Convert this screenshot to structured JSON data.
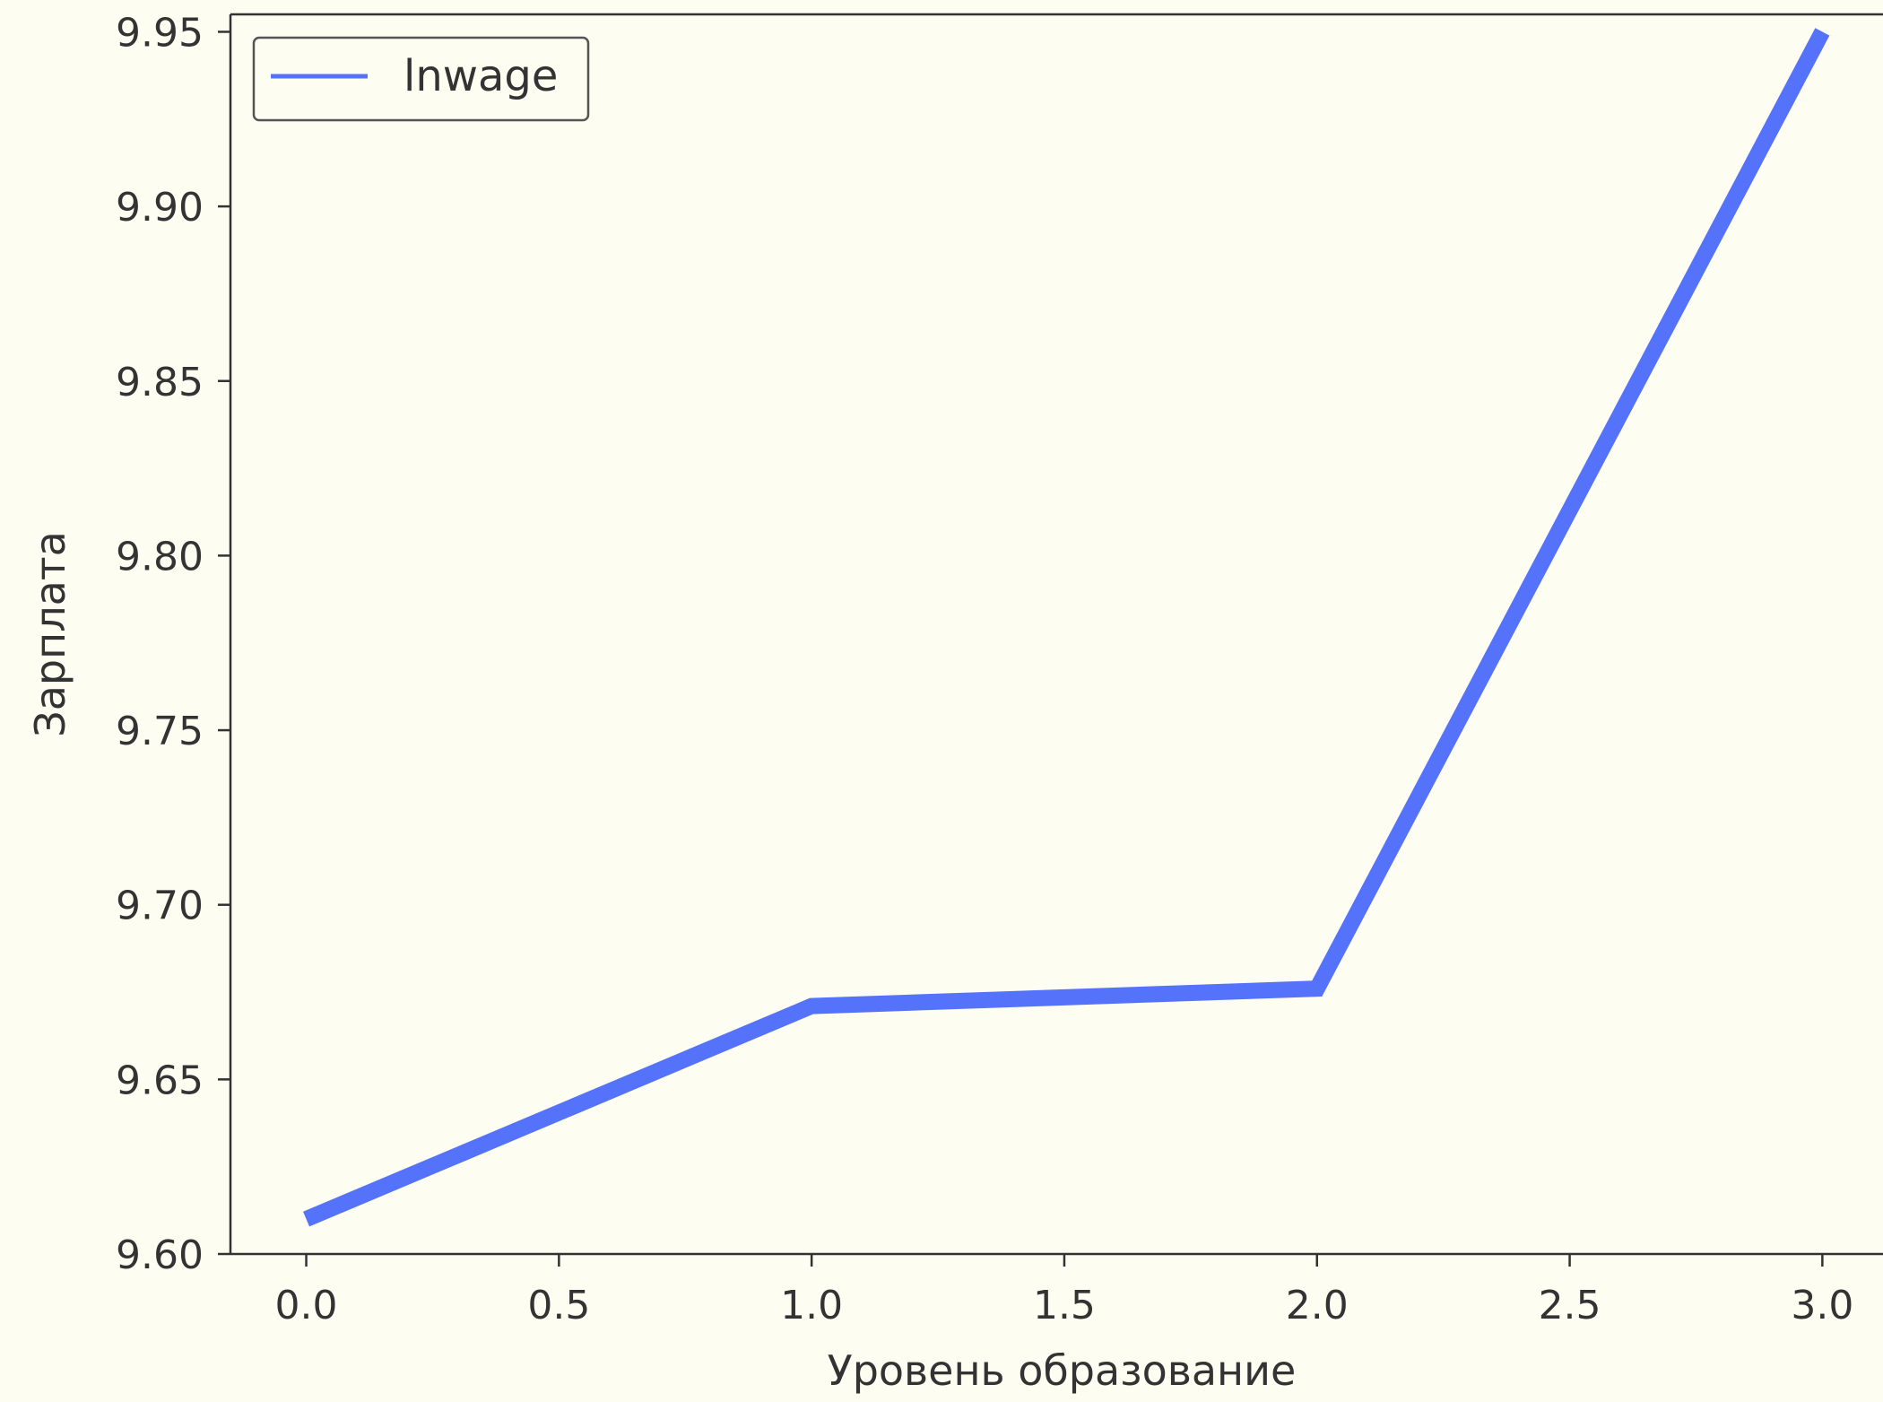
{
  "chart_data": {
    "type": "line",
    "title": "",
    "xlabel": "Уровень образование",
    "ylabel": "Зарплата",
    "xlim": [
      -0.15,
      3.12
    ],
    "ylim": [
      9.6,
      9.955
    ],
    "x_ticks": [
      "0.0",
      "0.5",
      "1.0",
      "1.5",
      "2.0",
      "2.5",
      "3.0"
    ],
    "y_ticks": [
      "9.60",
      "9.65",
      "9.70",
      "9.75",
      "9.80",
      "9.85",
      "9.90",
      "9.95"
    ],
    "legend": "top-left",
    "grid": false,
    "series": [
      {
        "name": "lnwage",
        "color": "#5572fb",
        "x": [
          0,
          1,
          2,
          3
        ],
        "values": [
          9.61,
          9.671,
          9.676,
          9.95
        ]
      }
    ]
  }
}
